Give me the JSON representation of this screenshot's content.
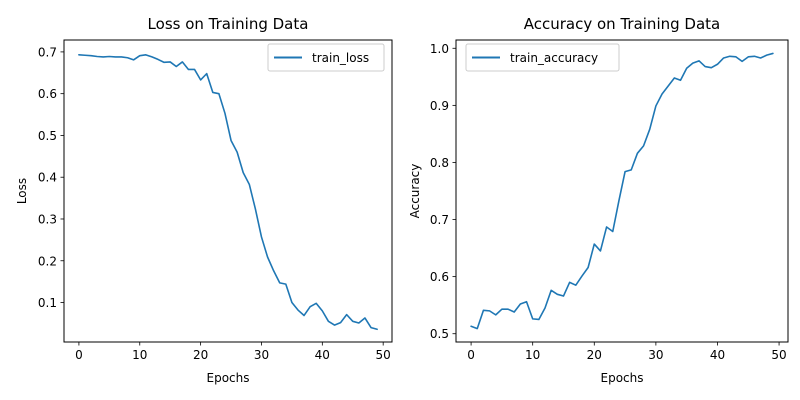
{
  "chart_data": [
    {
      "type": "line",
      "title": "Loss on Training Data",
      "xlabel": "Epochs",
      "ylabel": "Loss",
      "xlim": [
        -2.45,
        51.45
      ],
      "ylim": [
        0.0055,
        0.7285
      ],
      "xticks": [
        0,
        10,
        20,
        30,
        40,
        50
      ],
      "yticks": [
        0.1,
        0.2,
        0.3,
        0.4,
        0.5,
        0.6,
        0.7
      ],
      "ytick_decimals": 1,
      "grid": false,
      "legend_position": "top-right",
      "line_color": "#1f77b4",
      "series": [
        {
          "name": "train_loss",
          "x": [
            0,
            1,
            2,
            3,
            4,
            5,
            6,
            7,
            8,
            9,
            10,
            11,
            12,
            13,
            14,
            15,
            16,
            17,
            18,
            19,
            20,
            21,
            22,
            23,
            24,
            25,
            26,
            27,
            28,
            29,
            30,
            31,
            32,
            33,
            34,
            35,
            36,
            37,
            38,
            39,
            40,
            41,
            42,
            43,
            44,
            45,
            46,
            47,
            48,
            49
          ],
          "values": [
            0.693,
            0.692,
            0.691,
            0.689,
            0.688,
            0.689,
            0.688,
            0.688,
            0.686,
            0.681,
            0.691,
            0.693,
            0.688,
            0.682,
            0.675,
            0.676,
            0.665,
            0.676,
            0.658,
            0.658,
            0.633,
            0.648,
            0.603,
            0.6,
            0.553,
            0.488,
            0.46,
            0.411,
            0.383,
            0.324,
            0.257,
            0.209,
            0.176,
            0.147,
            0.144,
            0.1,
            0.082,
            0.069,
            0.09,
            0.098,
            0.08,
            0.055,
            0.046,
            0.052,
            0.071,
            0.055,
            0.051,
            0.063,
            0.04,
            0.036
          ]
        }
      ]
    },
    {
      "type": "line",
      "title": "Accuracy on Training Data",
      "xlabel": "Epochs",
      "ylabel": "Accuracy",
      "xlim": [
        -2.45,
        51.45
      ],
      "ylim": [
        0.4855,
        1.0145
      ],
      "xticks": [
        0,
        10,
        20,
        30,
        40,
        50
      ],
      "yticks": [
        0.5,
        0.6,
        0.7,
        0.8,
        0.9,
        1.0
      ],
      "ytick_decimals": 1,
      "grid": false,
      "legend_position": "top-left",
      "line_color": "#1f77b4",
      "series": [
        {
          "name": "train_accuracy",
          "x": [
            0,
            1,
            2,
            3,
            4,
            5,
            6,
            7,
            8,
            9,
            10,
            11,
            12,
            13,
            14,
            15,
            16,
            17,
            18,
            19,
            20,
            21,
            22,
            23,
            24,
            25,
            26,
            27,
            28,
            29,
            30,
            31,
            32,
            33,
            34,
            35,
            36,
            37,
            38,
            39,
            40,
            41,
            42,
            43,
            44,
            45,
            46,
            47,
            48,
            49
          ],
          "values": [
            0.513,
            0.509,
            0.541,
            0.54,
            0.533,
            0.543,
            0.543,
            0.538,
            0.552,
            0.556,
            0.526,
            0.525,
            0.545,
            0.576,
            0.569,
            0.566,
            0.59,
            0.585,
            0.601,
            0.616,
            0.657,
            0.645,
            0.687,
            0.679,
            0.733,
            0.784,
            0.787,
            0.816,
            0.829,
            0.858,
            0.899,
            0.92,
            0.934,
            0.948,
            0.944,
            0.965,
            0.974,
            0.978,
            0.968,
            0.966,
            0.972,
            0.983,
            0.986,
            0.985,
            0.977,
            0.985,
            0.986,
            0.983,
            0.988,
            0.991
          ]
        }
      ]
    }
  ]
}
